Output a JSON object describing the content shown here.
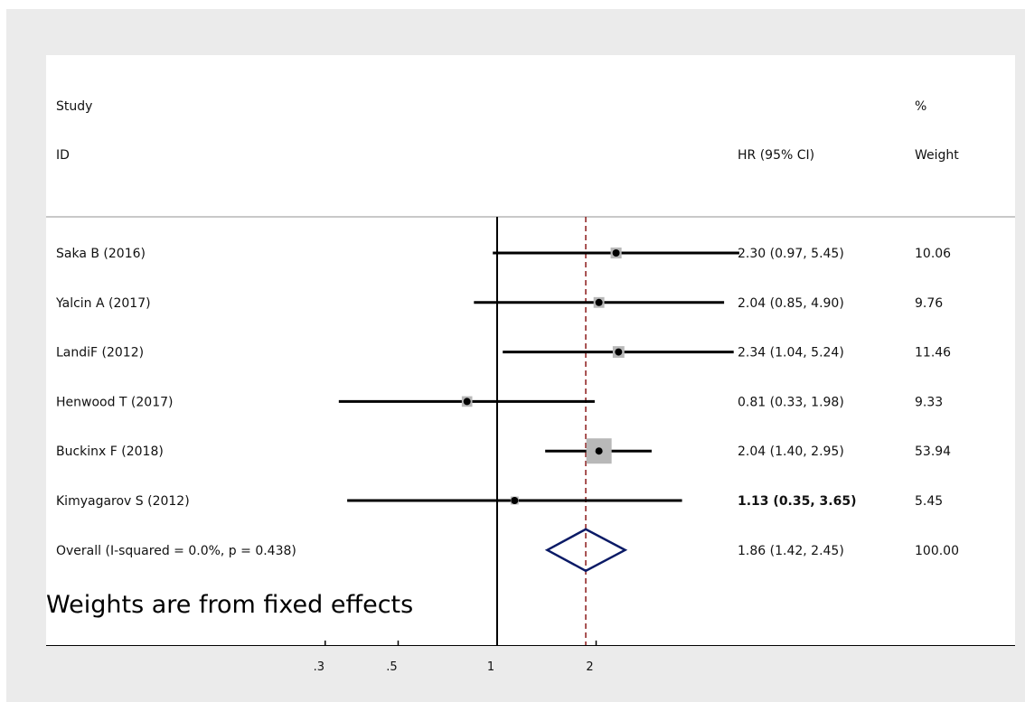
{
  "chart_data": {
    "type": "forest",
    "headers": {
      "study_line1": "Study",
      "study_line2": "ID",
      "hr": "HR (95% CI)",
      "weight_line1": "%",
      "weight_line2": "Weight"
    },
    "studies": [
      {
        "id": "Saka B (2016)",
        "hr": 2.3,
        "lo": 0.97,
        "hi": 5.45,
        "ci_text": "2.30 (0.97, 5.45)",
        "weight": 10.06,
        "weight_text": "10.06"
      },
      {
        "id": "Yalcin A (2017)",
        "hr": 2.04,
        "lo": 0.85,
        "hi": 4.9,
        "ci_text": "2.04 (0.85, 4.90)",
        "weight": 9.76,
        "weight_text": "9.76"
      },
      {
        "id": "LandiF  (2012)",
        "hr": 2.34,
        "lo": 1.04,
        "hi": 5.24,
        "ci_text": "2.34 (1.04, 5.24)",
        "weight": 11.46,
        "weight_text": "11.46"
      },
      {
        "id": "Henwood T (2017)",
        "hr": 0.81,
        "lo": 0.33,
        "hi": 1.98,
        "ci_text": "0.81 (0.33, 1.98)",
        "weight": 9.33,
        "weight_text": "9.33"
      },
      {
        "id": "Buckinx F (2018)",
        "hr": 2.04,
        "lo": 1.4,
        "hi": 2.95,
        "ci_text": "2.04 (1.40, 2.95)",
        "weight": 53.94,
        "weight_text": "53.94"
      },
      {
        "id": "Kimyagarov S (2012)",
        "hr": 1.13,
        "lo": 0.35,
        "hi": 3.65,
        "ci_text": "1.13 (0.35, 3.65)",
        "weight": 5.45,
        "weight_text": "5.45",
        "bold_ci": true
      }
    ],
    "overall": {
      "label": "Overall  (I-squared = 0.0%, p = 0.438)",
      "hr": 1.86,
      "lo": 1.42,
      "hi": 2.45,
      "ci_text": "1.86 (1.42, 2.45)",
      "weight_text": "100.00"
    },
    "x_scale": "log",
    "x_ticks": [
      {
        "value": 0.3,
        "label": ".3"
      },
      {
        "value": 0.5,
        "label": ".5"
      },
      {
        "value": 1,
        "label": "1"
      },
      {
        "value": 2,
        "label": "2"
      }
    ],
    "null_line": 1,
    "note": "Weights are from fixed effects",
    "colors": {
      "box": "#b8b8b8",
      "diamond": "#0a1a66",
      "overall_line": "#8b1a1a",
      "background": "#ebebeb",
      "panel": "#ffffff"
    }
  }
}
